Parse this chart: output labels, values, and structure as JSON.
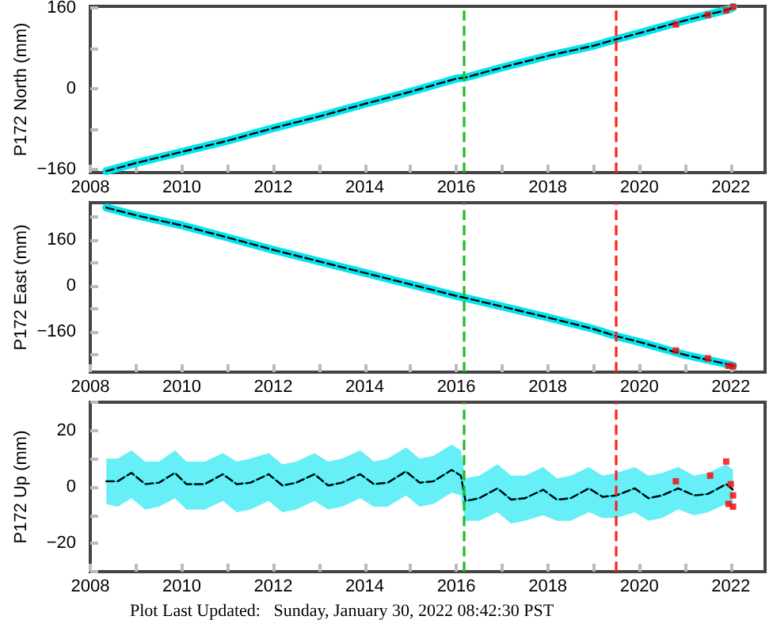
{
  "chart_data": [
    {
      "type": "line",
      "ylabel": "P172 North (mm)",
      "xlim": [
        2008,
        2022.75
      ],
      "xticks": [
        2008,
        {
          "value": 2009,
          "label": null
        },
        2010,
        {
          "value": 2011,
          "label": null
        },
        2012,
        {
          "value": 2013,
          "label": null
        },
        2014,
        {
          "value": 2015,
          "label": null
        },
        2016,
        {
          "value": 2017,
          "label": null
        },
        2018,
        {
          "value": 2019,
          "label": null
        },
        2020,
        {
          "value": 2021,
          "label": null
        },
        2022
      ],
      "ylim": [
        -166,
        163
      ],
      "yticks": [
        -160,
        {
          "value": -80,
          "label": null
        },
        0,
        {
          "value": 80,
          "label": null
        },
        160
      ],
      "grid": false,
      "marker": "none",
      "series": [
        {
          "color": "#00e5f0",
          "x": [
            2008.35,
            2009,
            2010,
            2011,
            2012,
            2013,
            2014,
            2015,
            2016,
            2016.2,
            2017,
            2018,
            2019,
            2019.5,
            2020,
            2021,
            2022,
            2022.05
          ],
          "values": [
            -163,
            -147,
            -125,
            -103,
            -78,
            -55,
            -30,
            -6,
            20,
            22,
            42,
            65,
            85,
            98,
            110,
            135,
            158,
            162
          ]
        },
        {
          "color": "#000000",
          "line_style": "dashed",
          "x": [
            2008.35,
            2009,
            2010,
            2011,
            2012,
            2013,
            2014,
            2015,
            2016,
            2016.2,
            2017,
            2018,
            2019,
            2019.5,
            2020,
            2021,
            2022,
            2022.05
          ],
          "values": [
            -163,
            -147,
            -125,
            -103,
            -78,
            -55,
            -30,
            -6,
            20,
            22,
            42,
            65,
            85,
            98,
            110,
            135,
            158,
            162
          ]
        },
        {
          "type": "scatter",
          "color": "#ff0000",
          "marker": "square",
          "x": [
            2020.8,
            2021.5,
            2021.9,
            2022.05
          ],
          "values": [
            127,
            146,
            155,
            162
          ]
        }
      ],
      "ref_lines": [
        {
          "axis": "x",
          "value": 2016.17,
          "color": "#22bb22",
          "line_style": "dashed"
        },
        {
          "axis": "x",
          "value": 2019.5,
          "color": "#ff2020",
          "line_style": "dashed"
        }
      ]
    },
    {
      "type": "line",
      "ylabel": "P172 East (mm)",
      "xlim": [
        2008,
        2022.75
      ],
      "xticks": [
        2008,
        {
          "value": 2009,
          "label": null
        },
        2010,
        {
          "value": 2011,
          "label": null
        },
        2012,
        {
          "value": 2013,
          "label": null
        },
        2014,
        {
          "value": 2015,
          "label": null
        },
        2016,
        {
          "value": 2017,
          "label": null
        },
        2018,
        {
          "value": 2019,
          "label": null
        },
        2020,
        {
          "value": 2021,
          "label": null
        },
        2022
      ],
      "ylim": [
        -300,
        289
      ],
      "yticks": [
        {
          "value": -240,
          "label": null
        },
        -160,
        {
          "value": -80,
          "label": null
        },
        0,
        {
          "value": 80,
          "label": null
        },
        160,
        {
          "value": 240,
          "label": null
        }
      ],
      "grid": false,
      "marker": "none",
      "series": [
        {
          "color": "#00e5f0",
          "x": [
            2008.35,
            2009,
            2010,
            2011,
            2012,
            2013,
            2014,
            2015,
            2016,
            2016.2,
            2017,
            2018,
            2019,
            2019.5,
            2020,
            2021,
            2022,
            2022.05
          ],
          "values": [
            272,
            245,
            210,
            168,
            125,
            85,
            45,
            5,
            -35,
            -42,
            -72,
            -110,
            -150,
            -175,
            -195,
            -240,
            -275,
            -278
          ]
        },
        {
          "color": "#000000",
          "line_style": "dashed",
          "x": [
            2008.35,
            2009,
            2010,
            2011,
            2012,
            2013,
            2014,
            2015,
            2016,
            2016.2,
            2017,
            2018,
            2019,
            2019.5,
            2020,
            2021,
            2022,
            2022.05
          ],
          "values": [
            272,
            245,
            210,
            168,
            125,
            85,
            45,
            5,
            -35,
            -42,
            -72,
            -110,
            -150,
            -175,
            -195,
            -240,
            -275,
            -278
          ]
        },
        {
          "type": "scatter",
          "color": "#ff0000",
          "marker": "square",
          "x": [
            2020.8,
            2021.5,
            2021.95,
            2022.05
          ],
          "values": [
            -225,
            -252,
            -278,
            -280
          ]
        }
      ],
      "ref_lines": [
        {
          "axis": "x",
          "value": 2016.17,
          "color": "#22bb22",
          "line_style": "dashed"
        },
        {
          "axis": "x",
          "value": 2019.5,
          "color": "#ff2020",
          "line_style": "dashed"
        }
      ]
    },
    {
      "type": "line",
      "ylabel": "P172 Up (mm)",
      "xlim": [
        2008,
        2022.75
      ],
      "xticks": [
        2008,
        {
          "value": 2009,
          "label": null
        },
        2010,
        {
          "value": 2011,
          "label": null
        },
        2012,
        {
          "value": 2013,
          "label": null
        },
        2014,
        {
          "value": 2015,
          "label": null
        },
        2016,
        {
          "value": 2017,
          "label": null
        },
        2018,
        {
          "value": 2019,
          "label": null
        },
        2020,
        {
          "value": 2021,
          "label": null
        },
        2022
      ],
      "ylim": [
        -30,
        30
      ],
      "yticks": [
        {
          "value": -30,
          "label": null
        },
        -20,
        {
          "value": -10,
          "label": null
        },
        0,
        {
          "value": 10,
          "label": null
        },
        20,
        {
          "value": 30,
          "label": null
        }
      ],
      "grid": false,
      "marker": "none",
      "series": [
        {
          "color": "#00e5f0",
          "x": [
            2008.35,
            2008.6,
            2008.9,
            2009.2,
            2009.5,
            2009.85,
            2010.1,
            2010.5,
            2010.9,
            2011.2,
            2011.5,
            2011.9,
            2012.2,
            2012.5,
            2012.9,
            2013.2,
            2013.5,
            2013.9,
            2014.2,
            2014.5,
            2014.9,
            2015.2,
            2015.5,
            2015.9,
            2016.1,
            2016.2,
            2016.5,
            2016.9,
            2017.2,
            2017.5,
            2017.9,
            2018.2,
            2018.5,
            2018.9,
            2019.2,
            2019.5,
            2019.9,
            2020.2,
            2020.5,
            2020.85,
            2021.2,
            2021.5,
            2021.9,
            2022.05
          ],
          "values": [
            2,
            2,
            5,
            1,
            1.5,
            5,
            1,
            1,
            4.5,
            1,
            1.5,
            4.5,
            0.5,
            1.5,
            4.5,
            0.5,
            1.5,
            4.5,
            1,
            1.5,
            5.5,
            1.5,
            2,
            6,
            4,
            -5,
            -4,
            -0.5,
            -4.5,
            -4,
            -1,
            -4.5,
            -4,
            -0.5,
            -3.5,
            -3,
            -0.5,
            -4,
            -3,
            -0.5,
            -3,
            -2.5,
            1,
            -1
          ],
          "lower": [
            -6,
            -7,
            -4,
            -8,
            -7,
            -4,
            -8,
            -8,
            -5,
            -9,
            -8,
            -5,
            -9,
            -8,
            -5,
            -8,
            -7,
            -4,
            -7,
            -7,
            -3,
            -7,
            -6,
            -2,
            -3,
            -12,
            -12,
            -9,
            -13,
            -12,
            -10,
            -12,
            -12,
            -9,
            -11,
            -11,
            -9,
            -12,
            -11,
            -8,
            -10,
            -9,
            -6,
            -8
          ],
          "upper": [
            10,
            10,
            13,
            9,
            9,
            13,
            9,
            9,
            12,
            9,
            10,
            12,
            8,
            9,
            12,
            9,
            10,
            13,
            9,
            10,
            14,
            10,
            11,
            15,
            13,
            3,
            4,
            8,
            4,
            4,
            7,
            3,
            4,
            7,
            4,
            5,
            7,
            4,
            5,
            7,
            4,
            5,
            8,
            6
          ]
        },
        {
          "color": "#000000",
          "line_style": "dashed",
          "x": [
            2008.35,
            2008.6,
            2008.9,
            2009.2,
            2009.5,
            2009.85,
            2010.1,
            2010.5,
            2010.9,
            2011.2,
            2011.5,
            2011.9,
            2012.2,
            2012.5,
            2012.9,
            2013.2,
            2013.5,
            2013.9,
            2014.2,
            2014.5,
            2014.9,
            2015.2,
            2015.5,
            2015.9,
            2016.1,
            2016.2,
            2016.5,
            2016.9,
            2017.2,
            2017.5,
            2017.9,
            2018.2,
            2018.5,
            2018.9,
            2019.2,
            2019.5,
            2019.9,
            2020.2,
            2020.5,
            2020.85,
            2021.2,
            2021.5,
            2021.9,
            2022.05
          ],
          "values": [
            2,
            2,
            5,
            1,
            1.5,
            5,
            1,
            1,
            4.5,
            1,
            1.5,
            4.5,
            0.5,
            1.5,
            4.5,
            0.5,
            1.5,
            4.5,
            1,
            1.5,
            5.5,
            1.5,
            2,
            6,
            4,
            -5,
            -4,
            -0.5,
            -4.5,
            -4,
            -1,
            -4.5,
            -4,
            -0.5,
            -3.5,
            -3,
            -0.5,
            -4,
            -3,
            -0.5,
            -3,
            -2.5,
            1,
            -1
          ]
        },
        {
          "type": "scatter",
          "color": "#ff0000",
          "marker": "square",
          "x": [
            2020.8,
            2021.55,
            2021.9,
            2021.95,
            2022,
            2022.05,
            2022.05
          ],
          "values": [
            2,
            4,
            9,
            -6,
            1,
            -7,
            -3
          ]
        }
      ],
      "ref_lines": [
        {
          "axis": "x",
          "value": 2016.17,
          "color": "#22bb22",
          "line_style": "dashed"
        },
        {
          "axis": "x",
          "value": 2019.5,
          "color": "#ff2020",
          "line_style": "dashed"
        }
      ],
      "annotations": [
        "Plot Last Updated:   Sunday, January 30, 2022 08:42:30 PST"
      ]
    }
  ]
}
